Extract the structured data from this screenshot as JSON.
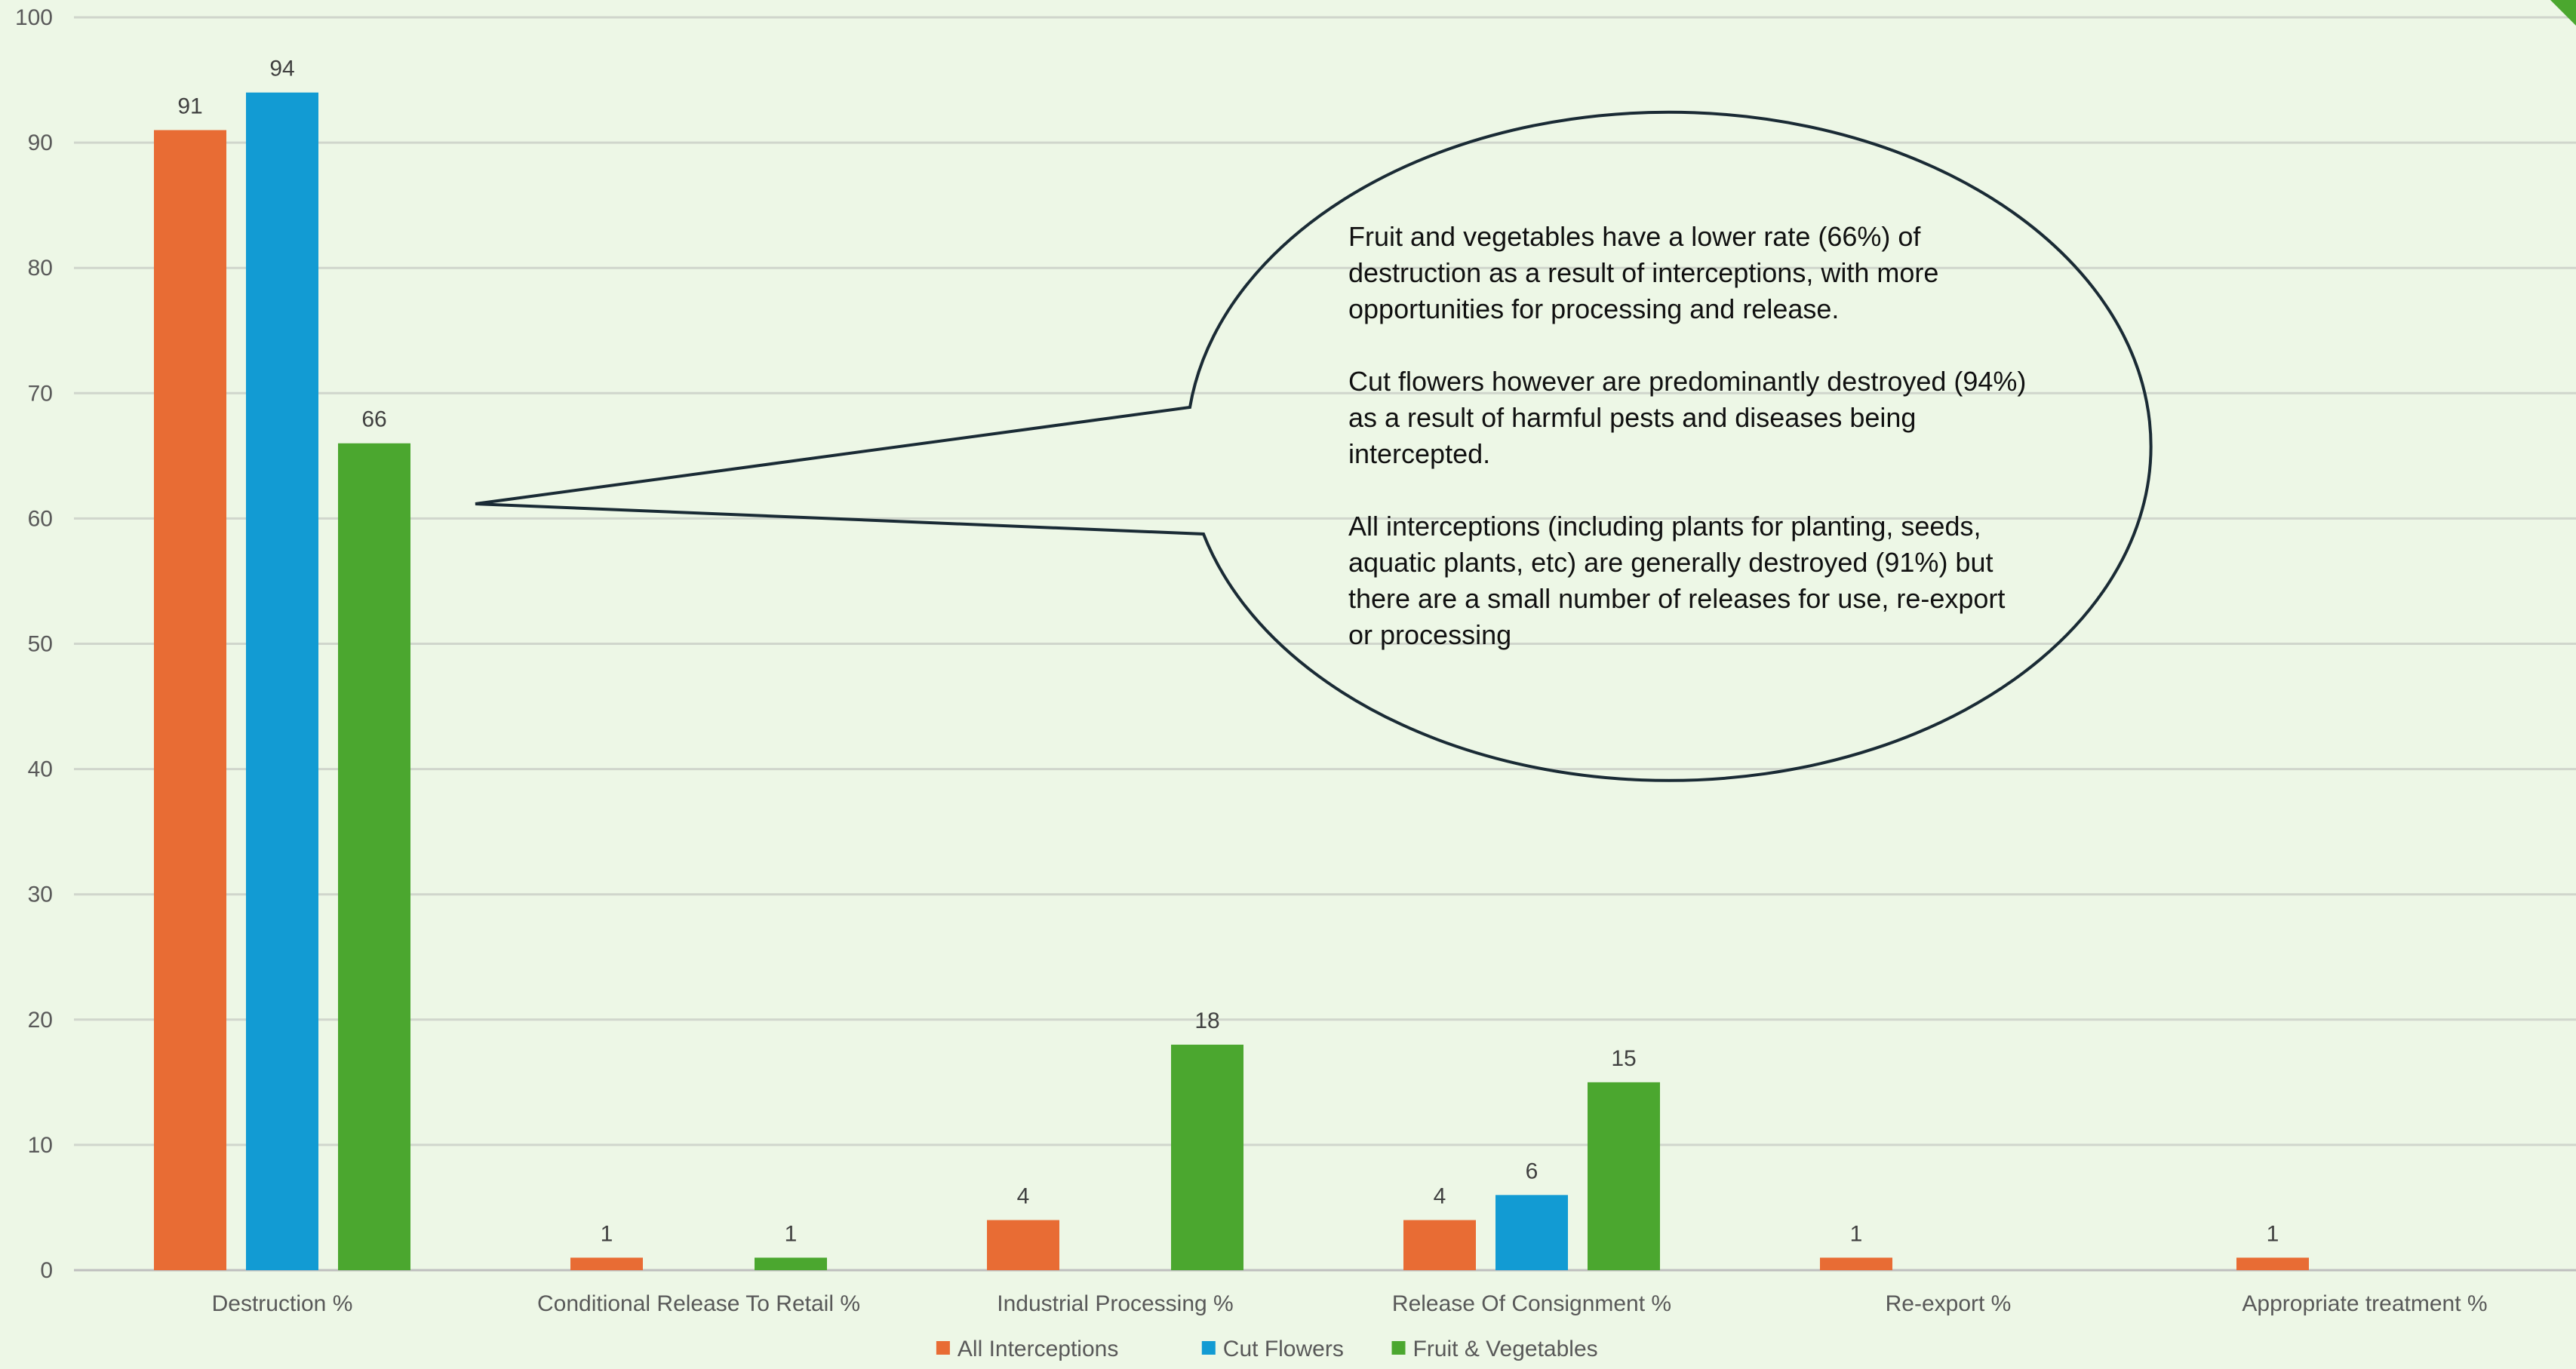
{
  "chart_data": {
    "type": "bar",
    "categories": [
      "Destruction %",
      "Conditional Release To Retail %",
      "Industrial Processing %",
      "Release Of  Consignment %",
      "Re-export %",
      "Appropriate treatment %"
    ],
    "series": [
      {
        "name": "All Interceptions",
        "color": "#e86c34",
        "values": [
          91,
          1,
          4,
          4,
          1,
          1
        ]
      },
      {
        "name": "Cut Flowers",
        "color": "#129bd3",
        "values": [
          94,
          null,
          null,
          6,
          null,
          null
        ]
      },
      {
        "name": "Fruit & Vegetables",
        "color": "#4ba72f",
        "values": [
          66,
          1,
          18,
          15,
          null,
          null
        ]
      }
    ],
    "ylim": [
      0,
      100
    ],
    "yticks": [
      0,
      10,
      20,
      30,
      40,
      50,
      60,
      70,
      80,
      90,
      100
    ],
    "grid": true,
    "legend_position": "bottom"
  },
  "callout": {
    "paragraphs": [
      "Fruit and vegetables have a lower rate (66%) of destruction as a result of interceptions, with more opportunities for processing and release.",
      "Cut flowers however are predominantly destroyed (94%)  as a result of harmful pests and diseases being intercepted.",
      "All interceptions (including plants for planting, seeds, aquatic plants, etc) are generally destroyed (91%) but there are a small number of releases for use, re-export or processing"
    ]
  }
}
